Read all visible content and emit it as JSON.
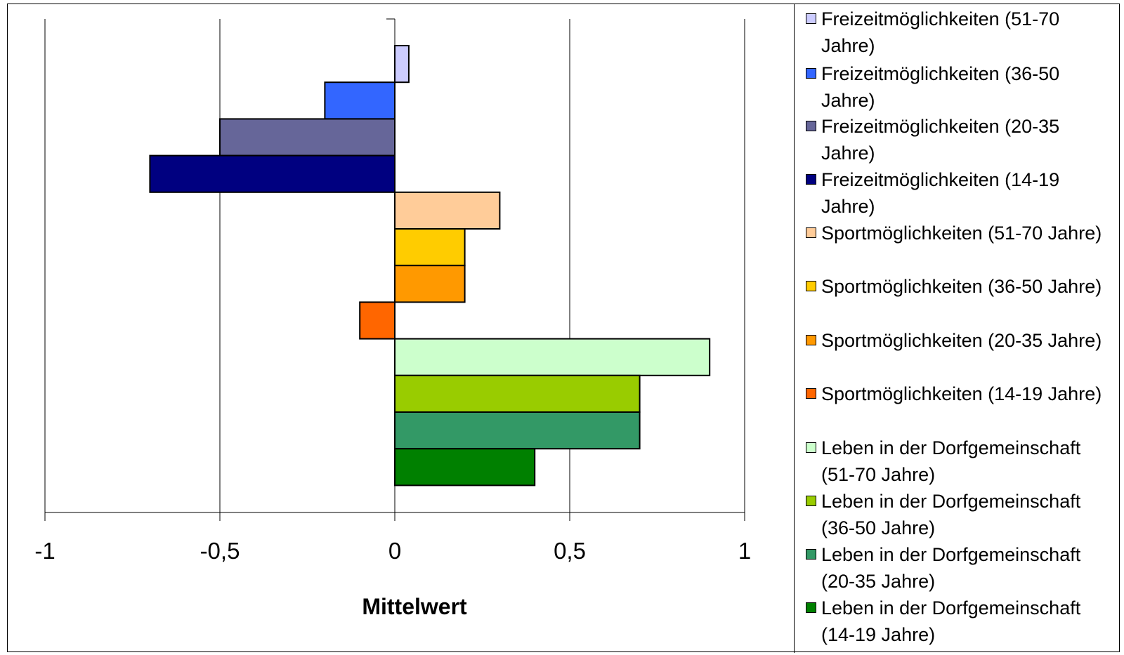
{
  "chart_data": {
    "type": "bar",
    "orientation": "horizontal",
    "xlabel": "Mittelwert",
    "xlim": [
      -1,
      1
    ],
    "xticks": [
      "-1",
      "-0,5",
      "0",
      "0,5",
      "1"
    ],
    "tick_values": [
      -1,
      -0.5,
      0,
      0.5,
      1
    ],
    "grid": "vertical",
    "legend_position": "right",
    "bars": [
      {
        "name": "Freizeitmöglichkeiten (51-70 Jahre)",
        "value": 0.04,
        "color": "#CCCCFF"
      },
      {
        "name": "Freizeitmöglichkeiten (36-50 Jahre)",
        "value": -0.2,
        "color": "#3366FF"
      },
      {
        "name": "Freizeitmöglichkeiten (20-35 Jahre)",
        "value": -0.5,
        "color": "#666699"
      },
      {
        "name": "Freizeitmöglichkeiten (14-19 Jahre)",
        "value": -0.7,
        "color": "#000080"
      },
      {
        "name": "Sportmöglichkeiten (51-70 Jahre)",
        "value": 0.3,
        "color": "#FFCC99"
      },
      {
        "name": "Sportmöglichkeiten (36-50 Jahre)",
        "value": 0.2,
        "color": "#FFCC00"
      },
      {
        "name": "Sportmöglichkeiten (20-35 Jahre)",
        "value": 0.2,
        "color": "#FF9900"
      },
      {
        "name": "Sportmöglichkeiten (14-19 Jahre)",
        "value": -0.1,
        "color": "#FF6600"
      },
      {
        "name": "Leben in der Dorfgemeinschaft (51-70 Jahre)",
        "value": 0.9,
        "color": "#CCFFCC"
      },
      {
        "name": "Leben in der Dorfgemeinschaft (36-50 Jahre)",
        "value": 0.7,
        "color": "#99CC00"
      },
      {
        "name": "Leben in der Dorfgemeinschaft (20-35 Jahre)",
        "value": 0.7,
        "color": "#339966"
      },
      {
        "name": "Leben in der Dorfgemeinschaft (14-19 Jahre)",
        "value": 0.4,
        "color": "#008000"
      }
    ],
    "legend": [
      {
        "line1": "Freizeitmöglichkeiten (51-70",
        "line2": "Jahre)",
        "color": "#CCCCFF"
      },
      {
        "line1": "Freizeitmöglichkeiten (36-50",
        "line2": "Jahre)",
        "color": "#3366FF"
      },
      {
        "line1": "Freizeitmöglichkeiten (20-35",
        "line2": "Jahre)",
        "color": "#666699"
      },
      {
        "line1": "Freizeitmöglichkeiten (14-19",
        "line2": "Jahre)",
        "color": "#000080"
      },
      {
        "line1": "Sportmöglichkeiten (51-70 Jahre)",
        "line2": "",
        "color": "#FFCC99"
      },
      {
        "line1": "Sportmöglichkeiten (36-50 Jahre)",
        "line2": "",
        "color": "#FFCC00"
      },
      {
        "line1": "Sportmöglichkeiten (20-35 Jahre)",
        "line2": "",
        "color": "#FF9900"
      },
      {
        "line1": "Sportmöglichkeiten (14-19 Jahre)",
        "line2": "",
        "color": "#FF6600"
      },
      {
        "line1": "Leben in der Dorfgemeinschaft",
        "line2": "(51-70 Jahre)",
        "color": "#CCFFCC"
      },
      {
        "line1": "Leben in der Dorfgemeinschaft",
        "line2": "(36-50 Jahre)",
        "color": "#99CC00"
      },
      {
        "line1": "Leben in der Dorfgemeinschaft",
        "line2": "(20-35 Jahre)",
        "color": "#339966"
      },
      {
        "line1": "Leben in der Dorfgemeinschaft",
        "line2": "(14-19 Jahre)",
        "color": "#008000"
      }
    ]
  }
}
